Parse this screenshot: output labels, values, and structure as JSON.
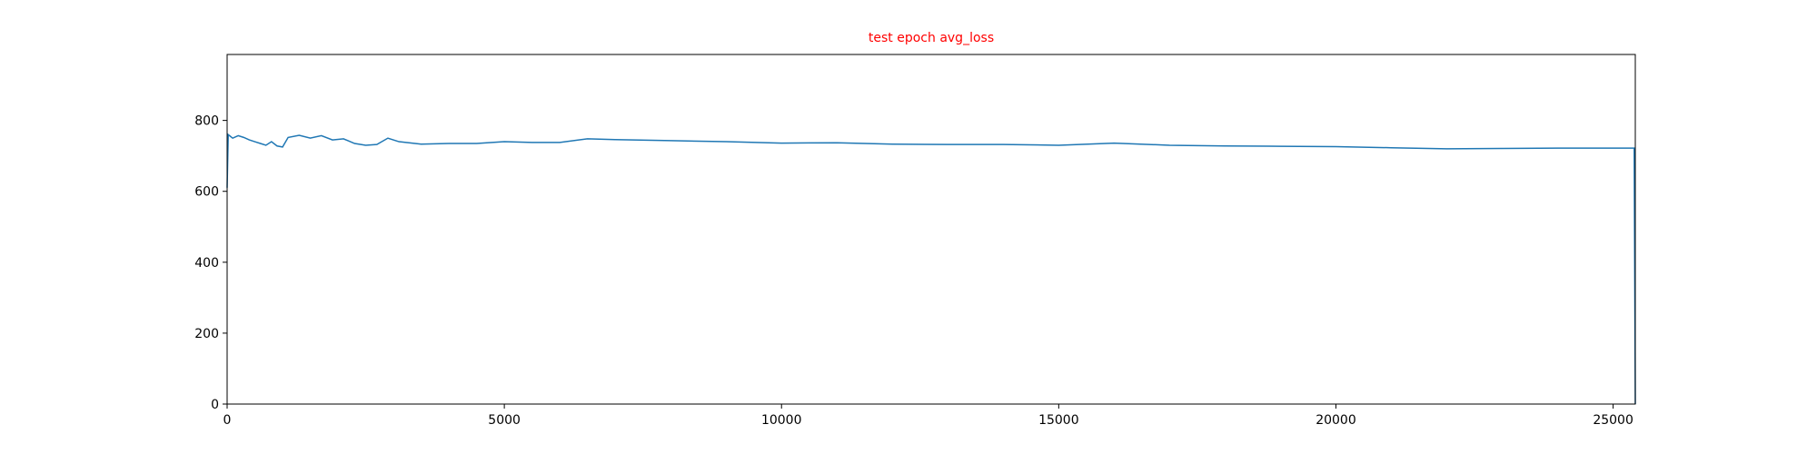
{
  "chart_data": {
    "type": "line",
    "title": "test epoch avg_loss",
    "title_color": "#ff0000",
    "x": [
      0,
      20,
      100,
      200,
      300,
      400,
      500,
      600,
      700,
      800,
      900,
      1000,
      1100,
      1300,
      1500,
      1700,
      1900,
      2100,
      2300,
      2500,
      2700,
      2900,
      3100,
      3500,
      4000,
      4500,
      5000,
      5500,
      6000,
      6500,
      7000,
      8000,
      9000,
      10000,
      11000,
      12000,
      13000,
      14000,
      15000,
      16000,
      17000,
      18000,
      19000,
      20000,
      21000,
      22000,
      23000,
      24000,
      25000,
      25380,
      25400
    ],
    "series": [
      {
        "color": "#1f77b4",
        "values": [
          610,
          760,
          750,
          757,
          752,
          745,
          740,
          735,
          730,
          740,
          728,
          725,
          752,
          758,
          750,
          757,
          745,
          748,
          735,
          730,
          732,
          750,
          740,
          733,
          735,
          735,
          740,
          738,
          738,
          748,
          746,
          743,
          740,
          736,
          737,
          733,
          732,
          732,
          730,
          736,
          730,
          728,
          727,
          726,
          723,
          720,
          721,
          722,
          722,
          722,
          0
        ]
      }
    ],
    "xlim": [
      0,
      25400
    ],
    "ylim": [
      0,
      986
    ],
    "xticks": [
      0,
      5000,
      10000,
      15000,
      20000,
      25000
    ],
    "yticks": [
      0,
      200,
      400,
      600,
      800
    ]
  }
}
